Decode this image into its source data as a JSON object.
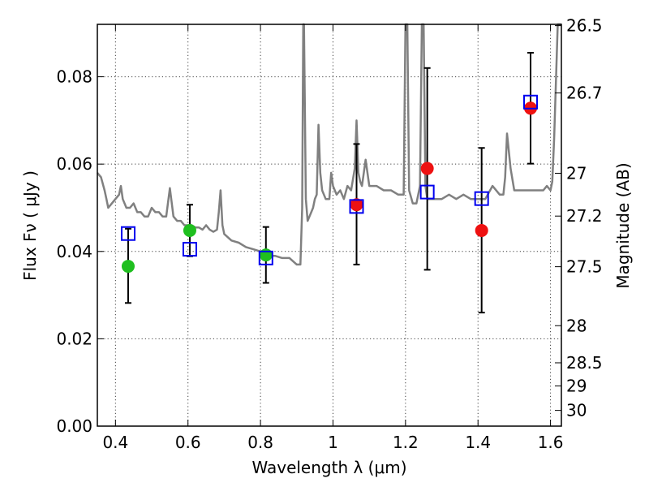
{
  "chart_data": {
    "type": "scatter",
    "xlabel": "Wavelength  λ (μm)",
    "ylabel": "Flux  Fν  ( μJy )",
    "y2label": "Magnitude (AB)",
    "xlim": [
      0.35,
      1.63
    ],
    "ylim": [
      0.0,
      0.092
    ],
    "grid": true,
    "x_ticks": [
      0.4,
      0.6,
      0.8,
      1.0,
      1.2,
      1.4,
      1.6
    ],
    "x_tick_labels": [
      "0.4",
      "0.6",
      "0.8",
      "1",
      "1.2",
      "1.4",
      "1.6"
    ],
    "y_ticks": [
      0.0,
      0.02,
      0.04,
      0.06,
      0.08
    ],
    "y_tick_labels": [
      "0.00",
      "0.02",
      "0.04",
      "0.06",
      "0.08"
    ],
    "y2_ticks": [
      {
        "label": "26.5",
        "flux": 0.0917
      },
      {
        "label": "26.7",
        "flux": 0.0763
      },
      {
        "label": "27",
        "flux": 0.0579
      },
      {
        "label": "27.2",
        "flux": 0.0481
      },
      {
        "label": "27.5",
        "flux": 0.0365
      },
      {
        "label": "28",
        "flux": 0.023
      },
      {
        "label": "28.5",
        "flux": 0.0145
      },
      {
        "label": "29",
        "flux": 0.0092
      },
      {
        "label": "30",
        "flux": 0.0036
      }
    ],
    "series": [
      {
        "kind": "line",
        "color": "#808080",
        "x": [
          0.35,
          0.36,
          0.37,
          0.375,
          0.38,
          0.39,
          0.4,
          0.41,
          0.415,
          0.42,
          0.43,
          0.44,
          0.45,
          0.46,
          0.47,
          0.48,
          0.49,
          0.5,
          0.51,
          0.52,
          0.53,
          0.54,
          0.55,
          0.56,
          0.57,
          0.58,
          0.59,
          0.6,
          0.61,
          0.62,
          0.63,
          0.64,
          0.65,
          0.66,
          0.67,
          0.68,
          0.685,
          0.69,
          0.695,
          0.7,
          0.72,
          0.74,
          0.76,
          0.78,
          0.8,
          0.82,
          0.84,
          0.86,
          0.88,
          0.9,
          0.91,
          0.915,
          0.918,
          0.92,
          0.925,
          0.93,
          0.94,
          0.945,
          0.95,
          0.955,
          0.96,
          0.965,
          0.97,
          0.98,
          0.99,
          0.995,
          1.0,
          1.005,
          1.01,
          1.02,
          1.03,
          1.04,
          1.05,
          1.06,
          1.065,
          1.07,
          1.075,
          1.08,
          1.09,
          1.1,
          1.12,
          1.14,
          1.16,
          1.18,
          1.19,
          1.195,
          1.2,
          1.205,
          1.21,
          1.22,
          1.23,
          1.24,
          1.245,
          1.25,
          1.255,
          1.26,
          1.27,
          1.28,
          1.29,
          1.3,
          1.32,
          1.34,
          1.36,
          1.38,
          1.4,
          1.42,
          1.44,
          1.46,
          1.47,
          1.475,
          1.48,
          1.49,
          1.5,
          1.52,
          1.54,
          1.56,
          1.58,
          1.59,
          1.6,
          1.605,
          1.61,
          1.62,
          1.63
        ],
        "y": [
          0.058,
          0.057,
          0.054,
          0.052,
          0.05,
          0.051,
          0.052,
          0.053,
          0.055,
          0.052,
          0.05,
          0.05,
          0.051,
          0.049,
          0.049,
          0.048,
          0.048,
          0.05,
          0.049,
          0.049,
          0.048,
          0.048,
          0.0545,
          0.048,
          0.047,
          0.047,
          0.046,
          0.046,
          0.046,
          0.0455,
          0.0455,
          0.045,
          0.046,
          0.045,
          0.0445,
          0.045,
          0.049,
          0.054,
          0.046,
          0.044,
          0.0425,
          0.042,
          0.041,
          0.0405,
          0.04,
          0.039,
          0.039,
          0.0385,
          0.0385,
          0.037,
          0.037,
          0.05,
          0.092,
          0.092,
          0.052,
          0.047,
          0.049,
          0.05,
          0.052,
          0.053,
          0.069,
          0.058,
          0.054,
          0.052,
          0.052,
          0.058,
          0.055,
          0.054,
          0.053,
          0.054,
          0.052,
          0.055,
          0.054,
          0.059,
          0.07,
          0.058,
          0.056,
          0.055,
          0.061,
          0.055,
          0.055,
          0.054,
          0.054,
          0.053,
          0.053,
          0.053,
          0.092,
          0.092,
          0.054,
          0.051,
          0.051,
          0.055,
          0.092,
          0.092,
          0.055,
          0.052,
          0.052,
          0.052,
          0.052,
          0.052,
          0.053,
          0.052,
          0.053,
          0.052,
          0.052,
          0.052,
          0.055,
          0.053,
          0.053,
          0.057,
          0.067,
          0.059,
          0.054,
          0.054,
          0.054,
          0.054,
          0.054,
          0.055,
          0.054,
          0.056,
          0.066,
          0.092,
          0.092
        ]
      },
      {
        "kind": "points",
        "name": "green",
        "color": "#1fbf1f",
        "x": [
          0.435,
          0.605,
          0.815
        ],
        "y": [
          0.0366,
          0.0448,
          0.0392
        ]
      },
      {
        "kind": "points",
        "name": "red",
        "color": "#ee1111",
        "x": [
          1.065,
          1.26,
          1.41,
          1.545
        ],
        "y": [
          0.0507,
          0.059,
          0.0448,
          0.0728
        ]
      },
      {
        "kind": "squares",
        "color": "#0000ee",
        "x": [
          0.435,
          0.605,
          0.815,
          1.065,
          1.26,
          1.41,
          1.545
        ],
        "y": [
          0.0441,
          0.0405,
          0.0385,
          0.0503,
          0.0536,
          0.0521,
          0.0742
        ]
      },
      {
        "kind": "errorbars",
        "color": "#000000",
        "x": [
          0.435,
          0.605,
          0.815,
          1.065,
          1.26,
          1.41,
          1.545
        ],
        "low": [
          0.0282,
          0.0389,
          0.0328,
          0.037,
          0.0358,
          0.026,
          0.0601
        ],
        "high": [
          0.0452,
          0.0507,
          0.0456,
          0.0646,
          0.082,
          0.0637,
          0.0855
        ]
      }
    ]
  }
}
